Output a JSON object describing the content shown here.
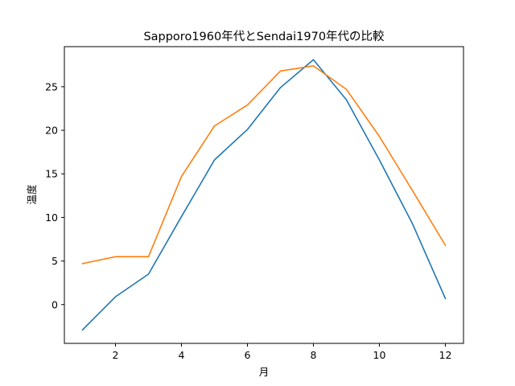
{
  "chart_data": {
    "type": "line",
    "title": "Sapporo1960年代とSendai1970年代の比較",
    "xlabel": "月",
    "ylabel": "温度",
    "x": [
      1,
      2,
      3,
      4,
      5,
      6,
      7,
      8,
      9,
      10,
      11,
      12
    ],
    "xlim": [
      0.45,
      12.55
    ],
    "ylim": [
      -4.45,
      29.6
    ],
    "xticks": [
      2,
      4,
      6,
      8,
      10,
      12
    ],
    "yticks": [
      0,
      5,
      10,
      15,
      20,
      25
    ],
    "grid": false,
    "series": [
      {
        "color": "#1f77b4",
        "values": [
          -2.9,
          0.9,
          3.5,
          10.1,
          16.6,
          20.1,
          24.9,
          28.1,
          23.5,
          16.6,
          9.3,
          0.7
        ]
      },
      {
        "color": "#ff7f0e",
        "values": [
          4.7,
          5.5,
          5.5,
          14.7,
          20.5,
          22.9,
          26.8,
          27.4,
          24.7,
          19.3,
          13.1,
          6.8
        ]
      }
    ]
  }
}
